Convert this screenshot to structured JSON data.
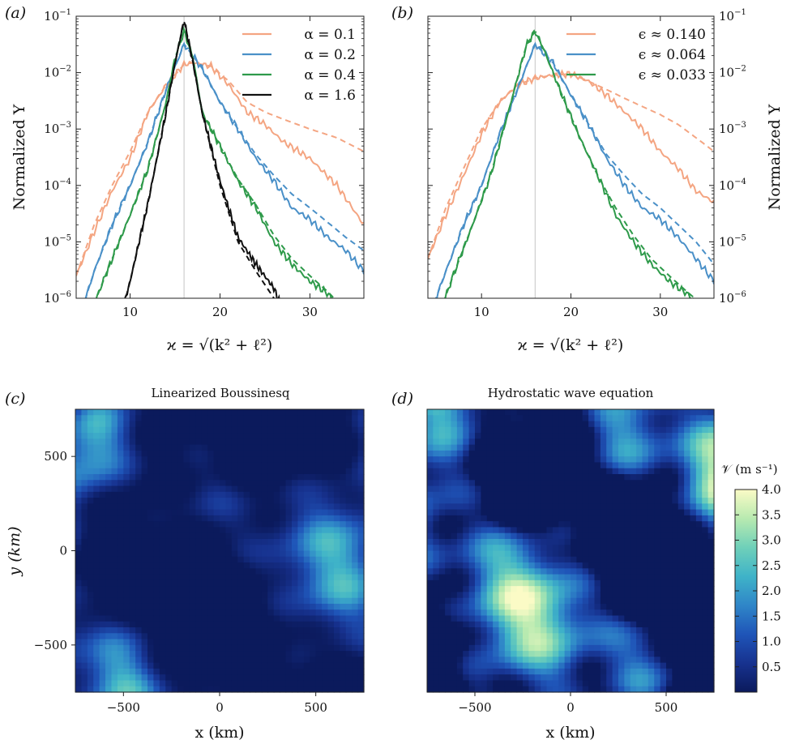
{
  "chart_data": [
    {
      "type": "line",
      "panel_label": "(a)",
      "ylabel": "Normalized Υ",
      "xlabel": "ϰ = √(k² + ℓ²)",
      "yscale": "log",
      "xlim": [
        4,
        36
      ],
      "ylim": [
        1e-06,
        0.1
      ],
      "xticks": [
        "10",
        "20",
        "30"
      ],
      "yticks_base": "10",
      "yticks_exp": [
        "−6",
        "−5",
        "−4",
        "−3",
        "−2",
        "−1"
      ],
      "peak_marker_x": 16,
      "legend_position": "top-right",
      "series": [
        {
          "name": "α = 0.1",
          "color": "#f4a582",
          "x": [
            4,
            6,
            8,
            10,
            12,
            14,
            16,
            17,
            19,
            21,
            23,
            25,
            27,
            30,
            33,
            36
          ],
          "y": [
            2.5e-06,
            1.5e-05,
            8e-05,
            0.0003,
            0.002,
            0.006,
            0.014,
            0.015,
            0.013,
            0.006,
            0.002,
            0.0012,
            0.0006,
            0.0003,
            0.0001,
            2e-05
          ],
          "y_dashed": [
            2.5e-06,
            2e-05,
            0.0001,
            0.0004,
            0.002,
            0.006,
            0.014,
            0.015,
            0.013,
            0.007,
            0.003,
            0.002,
            0.0015,
            0.001,
            0.0007,
            0.0004
          ]
        },
        {
          "name": "α = 0.2",
          "color": "#4a90c8",
          "x": [
            4,
            6,
            8,
            10,
            12,
            14,
            16,
            18,
            20,
            22,
            24,
            26,
            28,
            30,
            32,
            34,
            36
          ],
          "y": [
            3e-07,
            3e-06,
            2e-05,
            0.0001,
            0.0006,
            0.005,
            0.032,
            0.012,
            0.003,
            0.001,
            0.0003,
            0.00012,
            4e-05,
            2.5e-05,
            1.2e-05,
            7e-06,
            3e-06
          ],
          "y_dashed": [
            3e-07,
            3e-06,
            2e-05,
            0.0001,
            0.0006,
            0.005,
            0.032,
            0.012,
            0.003,
            0.001,
            0.00035,
            0.00015,
            7e-05,
            4e-05,
            2.2e-05,
            1.2e-05,
            7e-06
          ]
        },
        {
          "name": "α = 0.4",
          "color": "#2e9a4a",
          "x": [
            6,
            8,
            10,
            12,
            14,
            15,
            16,
            17,
            18,
            20,
            22,
            24,
            26,
            28,
            30,
            32,
            34
          ],
          "y": [
            8e-07,
            5e-06,
            3e-05,
            0.0002,
            0.003,
            0.018,
            0.055,
            0.018,
            0.002,
            0.0005,
            0.00012,
            4e-05,
            1e-05,
            4e-06,
            2e-06,
            1.2e-06,
            5e-07
          ],
          "y_dashed": [
            8e-07,
            5e-06,
            3e-05,
            0.0002,
            0.003,
            0.018,
            0.055,
            0.018,
            0.002,
            0.0005,
            0.00013,
            4.5e-05,
            1.3e-05,
            5e-06,
            2.5e-06,
            1.3e-06,
            6e-07
          ]
        },
        {
          "name": "α = 1.6",
          "color": "#111111",
          "x": [
            9,
            10,
            12,
            14,
            15,
            16,
            17,
            18,
            20,
            22,
            24,
            26,
            27
          ],
          "y": [
            5e-07,
            2e-06,
            5e-05,
            0.002,
            0.015,
            0.085,
            0.015,
            0.002,
            0.00012,
            1.2e-05,
            4e-06,
            1.5e-06,
            6e-07
          ],
          "y_dashed": [
            5e-07,
            2e-06,
            5e-05,
            0.002,
            0.015,
            0.085,
            0.015,
            0.002,
            0.0001,
            1e-05,
            3e-06,
            1e-06,
            5e-07
          ]
        }
      ]
    },
    {
      "type": "line",
      "panel_label": "(b)",
      "ylabel": "Normalized Υ",
      "xlabel": "ϰ = √(k² + ℓ²)",
      "yscale": "log",
      "xlim": [
        4,
        36
      ],
      "ylim": [
        1e-06,
        0.1
      ],
      "xticks": [
        "10",
        "20",
        "30"
      ],
      "yticks_base": "10",
      "yticks_exp": [
        "−6",
        "−5",
        "−4",
        "−3",
        "−2",
        "−1"
      ],
      "peak_marker_x": 16,
      "legend_position": "top-right",
      "series": [
        {
          "name": "ϵ ≈ 0.140",
          "color": "#f4a582",
          "x": [
            4,
            6,
            8,
            10,
            12,
            14,
            16,
            18,
            20,
            22,
            24,
            26,
            28,
            30,
            32,
            34,
            36
          ],
          "y": [
            5e-06,
            3e-05,
            0.00015,
            0.0008,
            0.003,
            0.006,
            0.008,
            0.009,
            0.0095,
            0.007,
            0.004,
            0.002,
            0.001,
            0.0004,
            0.0002,
            8e-05,
            5e-05
          ],
          "y_dashed": [
            5e-06,
            4e-05,
            0.0002,
            0.001,
            0.003,
            0.006,
            0.008,
            0.009,
            0.0095,
            0.007,
            0.005,
            0.0035,
            0.0025,
            0.0018,
            0.0012,
            0.0007,
            0.0004
          ]
        },
        {
          "name": "ϵ ≈ 0.064",
          "color": "#4a90c8",
          "x": [
            4,
            6,
            8,
            10,
            12,
            14,
            16,
            18,
            20,
            22,
            24,
            26,
            28,
            30,
            32,
            34,
            36
          ],
          "y": [
            4e-07,
            3e-06,
            2e-05,
            0.0001,
            0.0008,
            0.005,
            0.032,
            0.015,
            0.004,
            0.0012,
            0.0003,
            0.0001,
            4e-05,
            2.5e-05,
            1.2e-05,
            5e-06,
            2e-06
          ],
          "y_dashed": [
            4e-07,
            3e-06,
            2e-05,
            0.0001,
            0.0008,
            0.005,
            0.032,
            0.015,
            0.004,
            0.0012,
            0.00035,
            0.00015,
            7e-05,
            4e-05,
            2e-05,
            1e-05,
            4e-06
          ]
        },
        {
          "name": "ϵ ≈ 0.033",
          "color": "#2e9a4a",
          "x": [
            5,
            7,
            9,
            11,
            13,
            15,
            16,
            17,
            19,
            21,
            23,
            25,
            27,
            29,
            31,
            33,
            35
          ],
          "y": [
            4e-07,
            3e-06,
            2e-05,
            0.00015,
            0.002,
            0.03,
            0.055,
            0.025,
            0.004,
            0.0007,
            0.00015,
            3e-05,
            1e-05,
            4e-06,
            2e-06,
            1.2e-06,
            6e-07
          ],
          "y_dashed": [
            4e-07,
            3e-06,
            2e-05,
            0.00015,
            0.002,
            0.03,
            0.055,
            0.025,
            0.004,
            0.0007,
            0.00015,
            4e-05,
            1.3e-05,
            5e-06,
            2.5e-06,
            1.3e-06,
            7e-07
          ]
        }
      ]
    },
    {
      "type": "heatmap",
      "panel_label": "(c)",
      "title": "Linearized Boussinesq",
      "xlabel": "x (km)",
      "ylabel": "y (km)",
      "xlim": [
        -750,
        750
      ],
      "ylim": [
        -750,
        750
      ],
      "xticks": [
        "−500",
        "0",
        "500"
      ],
      "yticks": [
        "500",
        "0",
        "−500"
      ],
      "field_max": 2.6
    },
    {
      "type": "heatmap",
      "panel_label": "(d)",
      "title": "Hydrostatic wave equation",
      "xlabel": "x (km)",
      "xlim": [
        -750,
        750
      ],
      "ylim": [
        -750,
        750
      ],
      "xticks": [
        "−500",
        "0",
        "500"
      ],
      "field_max": 4.0,
      "colorbar": {
        "label": "𝒱 (m s⁻¹)",
        "range": [
          0,
          4.0
        ],
        "ticks": [
          "4.0",
          "3.5",
          "3.0",
          "2.5",
          "2.0",
          "1.5",
          "1.0",
          "0.5"
        ],
        "colors": [
          "#0b1a5c",
          "#17328f",
          "#1f55b8",
          "#2f86c8",
          "#3fb3c8",
          "#6fd0b9",
          "#b8eab0",
          "#fbfbc6"
        ]
      }
    }
  ]
}
